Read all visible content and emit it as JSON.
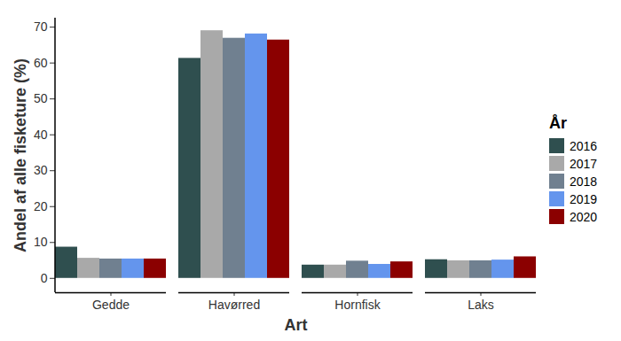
{
  "chart_data": {
    "type": "bar",
    "x_label": "Art",
    "y_label": "Andel af alle fisketure (%)",
    "categories": [
      "Gedde",
      "Havørred",
      "Hornfisk",
      "Laks"
    ],
    "series": [
      {
        "name": "2016",
        "color": "#2f4f4f",
        "values": [
          8.7,
          61.3,
          3.7,
          5.2
        ]
      },
      {
        "name": "2017",
        "color": "#a9a9a9",
        "values": [
          5.6,
          69.0,
          3.7,
          4.9
        ]
      },
      {
        "name": "2018",
        "color": "#708090",
        "values": [
          5.4,
          66.9,
          4.8,
          4.9
        ]
      },
      {
        "name": "2019",
        "color": "#6495ed",
        "values": [
          5.4,
          68.1,
          3.9,
          5.1
        ]
      },
      {
        "name": "2020",
        "color": "#8b0000",
        "values": [
          5.4,
          66.4,
          4.6,
          6.0
        ]
      }
    ],
    "ylim": [
      -4,
      72.5
    ],
    "yticks": [
      0,
      10,
      20,
      30,
      40,
      50,
      60,
      70
    ],
    "grid": false,
    "legend": "right",
    "legend_title": "År"
  }
}
